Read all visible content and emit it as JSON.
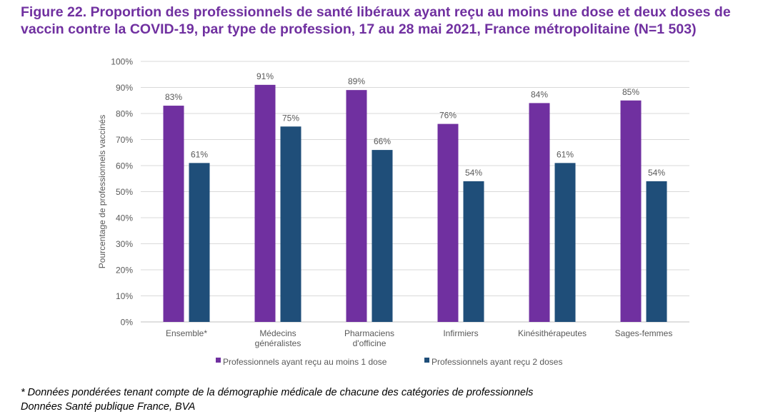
{
  "title": "Figure 22. Proportion des professionnels de santé libéraux ayant reçu au moins une dose et deux doses de vaccin contre la COVID-19, par type de profession, 17 au 28 mai 2021, France métropolitaine (N=1 503)",
  "colors": {
    "title": "#7030a0",
    "series1": "#7030a0",
    "series2": "#1f4e79",
    "grid": "#d9d9d9",
    "axis_text": "#595959"
  },
  "chart_data": {
    "type": "bar",
    "ylabel": "Pourcentage de professionnels vaccinés",
    "ylim": [
      0,
      100
    ],
    "yticks": [
      "0%",
      "10%",
      "20%",
      "30%",
      "40%",
      "50%",
      "60%",
      "70%",
      "80%",
      "90%",
      "100%"
    ],
    "grid": true,
    "legend_position": "bottom",
    "categories": [
      [
        "Ensemble*"
      ],
      [
        "Médecins",
        "généralistes"
      ],
      [
        "Pharmaciens",
        "d'officine"
      ],
      [
        "Infirmiers"
      ],
      [
        "Kinésithérapeutes"
      ],
      [
        "Sages-femmes"
      ]
    ],
    "series": [
      {
        "name": "Professionnels ayant reçu au moins 1 dose",
        "values": [
          83,
          91,
          89,
          76,
          84,
          85
        ],
        "labels": [
          "83%",
          "91%",
          "89%",
          "76%",
          "84%",
          "85%"
        ]
      },
      {
        "name": "Professionnels ayant reçu 2 doses",
        "values": [
          61,
          75,
          66,
          54,
          61,
          54
        ],
        "labels": [
          "61%",
          "75%",
          "66%",
          "54%",
          "61%",
          "54%"
        ]
      }
    ]
  },
  "footnotes": [
    "* Données pondérées tenant compte de la démographie médicale de chacune des catégories de professionnels",
    "Données Santé publique France, BVA"
  ]
}
